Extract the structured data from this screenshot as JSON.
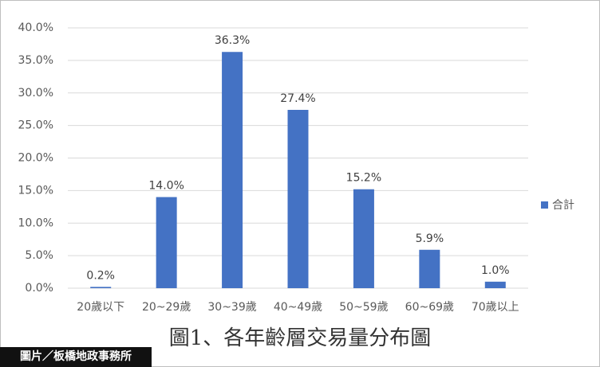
{
  "chart_data": {
    "type": "bar",
    "title": "圖1、各年齡層交易量分布圖",
    "categories": [
      "20歲以下",
      "20~29歲",
      "30~39歲",
      "40~49歲",
      "50~59歲",
      "60~69歲",
      "70歲以上"
    ],
    "series": [
      {
        "name": "合計",
        "color": "#4472c4",
        "values": [
          0.2,
          14.0,
          36.3,
          27.4,
          15.2,
          5.9,
          1.0
        ],
        "value_labels": [
          "0.2%",
          "14.0%",
          "36.3%",
          "27.4%",
          "15.2%",
          "5.9%",
          "1.0%"
        ]
      }
    ],
    "ylim": [
      0,
      40
    ],
    "yticks": [
      {
        "value": 0,
        "label": "0.0%"
      },
      {
        "value": 5,
        "label": "5.0%"
      },
      {
        "value": 10,
        "label": "10.0%"
      },
      {
        "value": 15,
        "label": "15.0%"
      },
      {
        "value": 20,
        "label": "20.0%"
      },
      {
        "value": 25,
        "label": "25.0%"
      },
      {
        "value": 30,
        "label": "30.0%"
      },
      {
        "value": 35,
        "label": "35.0%"
      },
      {
        "value": 40,
        "label": "40.0%"
      }
    ],
    "grid": true,
    "legend": "right"
  },
  "source": "圖片／板橋地政事務所"
}
